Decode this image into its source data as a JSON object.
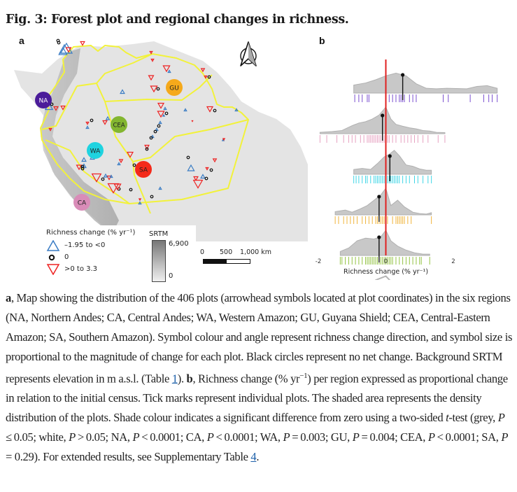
{
  "figure": {
    "title": "Fig. 3: Forest plot and regional changes in richness.",
    "panel_a_label": "a",
    "panel_b_label": "b"
  },
  "map": {
    "regions": [
      {
        "code": "NA",
        "name": "Northern Andes",
        "color": "#4b1c9a"
      },
      {
        "code": "CA",
        "name": "Central Andes",
        "color": "#d98cb8"
      },
      {
        "code": "WA",
        "name": "Western Amazon",
        "color": "#1fd3e0"
      },
      {
        "code": "GU",
        "name": "Guyana Shield",
        "color": "#f5a91b"
      },
      {
        "code": "CEA",
        "name": "Central-Eastern Amazon",
        "color": "#83b630"
      },
      {
        "code": "SA",
        "name": "Southern Amazon",
        "color": "#f42a1a"
      }
    ],
    "boundary_color": "#f2f23a",
    "north_arrow_icon": "north-arrow-icon",
    "legend": {
      "title": "Richness change (% yr⁻¹)",
      "items": [
        {
          "symbol": "triangle-up-blue",
          "label": "–1.95 to <0",
          "color": "#3a7cc4"
        },
        {
          "symbol": "circle-black",
          "label": "0",
          "color": "#111111"
        },
        {
          "symbol": "triangle-down-red",
          "label": ">0 to 3.3",
          "color": "#ee2222"
        }
      ]
    },
    "srtm": {
      "title": "SRTM",
      "max_label": "6,900",
      "min_label": "0"
    },
    "scale_bar": {
      "labels": [
        "0",
        "500",
        "1,000 km"
      ]
    }
  },
  "chart_data": {
    "type": "ridgeline",
    "title": "",
    "xlabel": "Richness change (% yr⁻¹)",
    "ylabel": "",
    "xlim": [
      -2,
      2.6
    ],
    "x_ticks": [
      -2,
      0,
      2
    ],
    "x_tick_labels": [
      "-2",
      "0",
      "2"
    ],
    "reference_line": {
      "x": 0,
      "color": "#e02020"
    },
    "grid": false,
    "series": [
      {
        "name": "NA",
        "color": "#7a4fd0",
        "significant": true,
        "mean": 0.5,
        "ticks": [
          -0.92,
          -0.8,
          -0.7,
          -0.55,
          -0.5,
          0,
          0.1,
          0.2,
          0.3,
          0.4,
          0.45,
          0.5,
          0.55,
          0.7,
          0.8,
          0.9,
          1.7,
          1.85,
          2.5,
          2.9,
          3.05,
          3.15,
          3.3
        ],
        "density_x": [
          -0.95,
          -0.6,
          -0.3,
          0,
          0.3,
          0.6,
          0.9,
          1.2,
          1.5,
          1.8,
          2.1,
          2.4,
          2.7,
          3.0,
          3.3
        ],
        "density_y": [
          0.3,
          0.38,
          0.5,
          0.65,
          0.75,
          0.65,
          0.35,
          0.18,
          0.16,
          0.18,
          0.17,
          0.16,
          0.25,
          0.28,
          0.18
        ]
      },
      {
        "name": "CA",
        "color": "#e6a1c0",
        "significant": true,
        "mean": -0.1,
        "ticks": [
          -1.95,
          -1.75,
          -1.45,
          -1.25,
          -1.1,
          -1.0,
          -0.9,
          -0.75,
          -0.65,
          -0.55,
          -0.5,
          -0.45,
          -0.4,
          -0.35,
          -0.3,
          -0.25,
          -0.2,
          -0.15,
          -0.1,
          -0.05,
          0,
          0.05,
          0.1,
          0.2,
          0.3,
          0.45,
          0.55,
          0.65,
          0.75,
          0.85,
          0.95,
          1.1,
          1.25,
          1.55,
          1.75
        ],
        "density_x": [
          -1.95,
          -1.6,
          -1.3,
          -1.0,
          -0.8,
          -0.6,
          -0.4,
          -0.2,
          0,
          0.15,
          0.3,
          0.5,
          0.7,
          0.9,
          1.1,
          1.3,
          1.5,
          1.75
        ],
        "density_y": [
          0.05,
          0.08,
          0.12,
          0.3,
          0.4,
          0.45,
          0.55,
          0.7,
          1.0,
          0.55,
          0.35,
          0.28,
          0.22,
          0.18,
          0.12,
          0.1,
          0.05,
          0.04
        ]
      },
      {
        "name": "WA",
        "color": "#3fd6e6",
        "significant": true,
        "mean": 0.12,
        "ticks": [
          -0.95,
          -0.88,
          -0.8,
          -0.7,
          -0.6,
          -0.55,
          -0.45,
          -0.35,
          -0.3,
          -0.25,
          -0.2,
          -0.15,
          -0.1,
          -0.05,
          0,
          0.05,
          0.1,
          0.15,
          0.2,
          0.25,
          0.3,
          0.35,
          0.4,
          0.5,
          0.6,
          0.7,
          0.85,
          0.95,
          1.1,
          1.25,
          1.35
        ],
        "density_x": [
          -0.95,
          -0.7,
          -0.45,
          -0.25,
          -0.05,
          0.1,
          0.25,
          0.4,
          0.6,
          0.8,
          1.0,
          1.2,
          1.35
        ],
        "density_y": [
          0.18,
          0.22,
          0.18,
          0.4,
          0.65,
          0.75,
          0.9,
          0.7,
          0.35,
          0.3,
          0.2,
          0.15,
          0.15
        ]
      },
      {
        "name": "GU",
        "color": "#f0b43c",
        "significant": true,
        "mean": -0.2,
        "ticks": [
          -1.5,
          -1.4,
          -1.25,
          -1.15,
          -1.05,
          -0.95,
          -0.85,
          -0.7,
          -0.6,
          -0.5,
          -0.4,
          -0.3,
          -0.25,
          -0.2,
          -0.15,
          -0.1,
          -0.05,
          0.05,
          0.2,
          0.3,
          0.35,
          0.4,
          0.45,
          0.5,
          0.55,
          0.65,
          0.75,
          1.35
        ],
        "density_x": [
          -1.5,
          -1.2,
          -1.0,
          -0.8,
          -0.55,
          -0.35,
          -0.15,
          0,
          0.15,
          0.35,
          0.55,
          0.8,
          1.0,
          1.2,
          1.35
        ],
        "density_y": [
          0.12,
          0.18,
          0.1,
          0.2,
          0.35,
          0.55,
          0.75,
          1.0,
          0.35,
          0.55,
          0.3,
          0.1,
          0.05,
          0.03,
          0.08
        ]
      },
      {
        "name": "CEA",
        "color": "#93c342",
        "significant": true,
        "mean": -0.2,
        "ticks": [
          -1.35,
          -1.3,
          -1.2,
          -1.1,
          -1.0,
          -0.9,
          -0.8,
          -0.7,
          -0.6,
          -0.55,
          -0.5,
          -0.45,
          -0.4,
          -0.35,
          -0.3,
          -0.25,
          -0.2,
          -0.15,
          -0.1,
          -0.05,
          0,
          0.05,
          0.1,
          0.15,
          0.2,
          0.3,
          0.4,
          0.5,
          0.6,
          0.7,
          0.8,
          0.9,
          1.0,
          1.05,
          1.3
        ],
        "density_x": [
          -1.35,
          -1.1,
          -0.85,
          -0.6,
          -0.35,
          -0.15,
          0,
          0.15,
          0.35,
          0.6,
          0.85,
          1.1,
          1.3
        ],
        "density_y": [
          0.15,
          0.28,
          0.55,
          0.65,
          0.62,
          0.7,
          0.95,
          0.55,
          0.35,
          0.2,
          0.1,
          0.05,
          0.05
        ]
      },
      {
        "name": "SA",
        "color": "#ee4444",
        "significant": false,
        "mean": -0.15,
        "ticks": [
          -1.98,
          -1.92,
          -1.45,
          -1.1,
          -0.72,
          -0.45,
          -0.35,
          -0.3,
          -0.25,
          -0.2,
          -0.1,
          0.05,
          0.15,
          0.25,
          0.3,
          0.4,
          0.45,
          0.55,
          0.6,
          0.95,
          1.75
        ],
        "density_x": [
          -1.95,
          -1.7,
          -1.45,
          -1.2,
          -1.0,
          -0.75,
          -0.5,
          -0.3,
          -0.1,
          0,
          0.15,
          0.35,
          0.55,
          0.75,
          0.95,
          1.2,
          1.45,
          1.75
        ],
        "density_y": [
          0.25,
          0.1,
          0.1,
          0.18,
          0.12,
          0.2,
          0.35,
          0.6,
          0.7,
          0.75,
          0.55,
          0.5,
          0.55,
          0.3,
          0.12,
          0.08,
          0.1,
          0.25
        ]
      }
    ]
  },
  "caption": {
    "parts": [
      {
        "t": "a",
        "b": true
      },
      {
        "t": ", Map showing the distribution of the 406 plots (arrowhead symbols located at plot coordinates) in the six regions (NA, Northern Andes; CA, Central Andes; WA, Western Amazon; GU, Guyana Shield; CEA, Central-Eastern Amazon; SA, Southern Amazon). Symbol colour and angle represent richness change direction, and symbol size is proportional to the magnitude of change for each plot. Black circles represent no net change. Background SRTM represents elevation in m a.s.l. (Table "
      },
      {
        "t": "1",
        "link": true
      },
      {
        "t": "). "
      },
      {
        "t": "b",
        "b": true
      },
      {
        "t": ", Richness change (% yr"
      },
      {
        "t": "−1",
        "sup": true
      },
      {
        "t": ") per region expressed as proportional change in relation to the initial census. Tick marks represent individual plots. The shaded area represents the density distribution of the plots. Shade colour indicates a significant difference from zero using a two-sided "
      },
      {
        "t": "t",
        "i": true
      },
      {
        "t": "-test (grey, "
      },
      {
        "t": "P",
        "i": true
      },
      {
        "t": " ≤ 0.05; white, "
      },
      {
        "t": "P",
        "i": true
      },
      {
        "t": " > 0.05; NA, "
      },
      {
        "t": "P",
        "i": true
      },
      {
        "t": " < 0.0001; CA, "
      },
      {
        "t": "P",
        "i": true
      },
      {
        "t": " < 0.0001; WA, "
      },
      {
        "t": "P",
        "i": true
      },
      {
        "t": " = 0.003; GU, "
      },
      {
        "t": "P",
        "i": true
      },
      {
        "t": " = 0.004; CEA, "
      },
      {
        "t": "P",
        "i": true
      },
      {
        "t": " < 0.0001; SA, "
      },
      {
        "t": "P",
        "i": true
      },
      {
        "t": " = 0.29). For extended results, see Supplementary Table "
      },
      {
        "t": "4",
        "link": true
      },
      {
        "t": "."
      }
    ]
  }
}
